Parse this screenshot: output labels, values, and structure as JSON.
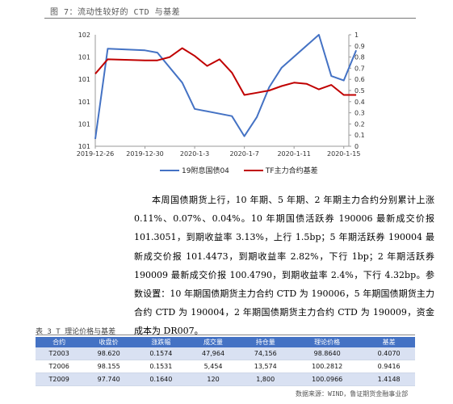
{
  "figure": {
    "caption": "图 7：流动性较好的 CTD 与基差"
  },
  "chart_data": {
    "type": "line",
    "x": [
      "2019-12-26",
      "2019-12-27",
      "2019-12-30",
      "2019-12-31",
      "2020-1-2",
      "2020-1-3",
      "2020-1-6",
      "2020-1-7",
      "2020-1-8",
      "2020-1-9",
      "2020-1-10",
      "2020-1-13",
      "2020-1-14",
      "2020-1-15",
      "2020-1-16"
    ],
    "xticks": [
      "2019-12-26",
      "2019-12-30",
      "2020-1-3",
      "2020-1-7",
      "2020-1-11",
      "2020-1-15"
    ],
    "xtick_values": [
      "2019-12-26",
      "2019-12-30",
      "2020-1-3",
      "2020-1-7",
      "2020-1-11",
      "2020-1-15"
    ],
    "left_axis_ticks": [
      "102",
      "101",
      "101",
      "101",
      "101",
      "101"
    ],
    "right_axis_ticks": [
      "1",
      "0.9",
      "0.8",
      "0.7",
      "0.6",
      "0.5",
      "0.4",
      "0.3",
      "0.2",
      "0.1",
      "0"
    ],
    "ylim_right": [
      0,
      1
    ],
    "series": [
      {
        "name": "19附息国债04",
        "axis": "left",
        "color": "#4472c4",
        "x": [
          "2019-12-26",
          "2019-12-27",
          "2019-12-30",
          "2019-12-31",
          "2020-1-2",
          "2020-1-3",
          "2020-1-6",
          "2020-1-7",
          "2020-1-8",
          "2020-1-9",
          "2020-1-10",
          "2020-1-13",
          "2020-1-14",
          "2020-1-15",
          "2020-1-16"
        ],
        "values": [
          0.065,
          0.875,
          0.86,
          0.84,
          0.57,
          0.335,
          0.27,
          0.09,
          0.26,
          0.53,
          0.705,
          1.0,
          0.63,
          0.59,
          0.86
        ]
      },
      {
        "name": "TF主力合约基差",
        "axis": "right",
        "color": "#c00000",
        "x": [
          "2019-12-26",
          "2019-12-27",
          "2019-12-30",
          "2019-12-31",
          "2020-1-1",
          "2020-1-2",
          "2020-1-3",
          "2020-1-4",
          "2020-1-5",
          "2020-1-6",
          "2020-1-7",
          "2020-1-8",
          "2020-1-9",
          "2020-1-10",
          "2020-1-11",
          "2020-1-12",
          "2020-1-13",
          "2020-1-14",
          "2020-1-15",
          "2020-1-16"
        ],
        "values": [
          0.65,
          0.78,
          0.77,
          0.77,
          0.8,
          0.88,
          0.81,
          0.72,
          0.78,
          0.66,
          0.46,
          0.48,
          0.5,
          0.54,
          0.57,
          0.56,
          0.51,
          0.55,
          0.46,
          0.46
        ]
      }
    ],
    "legend_position": "bottom"
  },
  "paragraph": "本周国债期货上行，10 年期、5 年期、2 年期主力合约分别累计上涨 0.11%、0.07%、0.04%。10 年期国债活跃券 190006 最新成交价报 101.3051，到期收益率 3.13%，上行 1.5bp；5 年期活跃券 190004 最新成交价报 101.4473，到期收益率 2.82%，下行 1bp；2 年期活跃券 190009 最新成交价报 100.4790，到期收益率 2.4%，下行 4.32bp。参数设置：10 年期国债期货主力合约 CTD 为 190006，5 年期国债期货主力合约 CTD 为 190004，2 年期国债期货主力合约 CTD 为 190009，资金成本为 DR007。",
  "table": {
    "caption": "表 3 T 理论价格与基差",
    "headers": [
      "合约",
      "收盘价",
      "涨跌幅",
      "成交量",
      "持仓量",
      "理论价格",
      "基差"
    ],
    "rows": [
      [
        "T2003",
        "98.620",
        "0.1574",
        "47,964",
        "74,156",
        "98.8640",
        "0.4070"
      ],
      [
        "T2006",
        "98.155",
        "0.1531",
        "5,454",
        "13,574",
        "100.2812",
        "0.9416"
      ],
      [
        "T2009",
        "97.740",
        "0.1640",
        "120",
        "1,800",
        "100.0966",
        "1.4148"
      ]
    ]
  },
  "source": "数据来源：WIND，鲁证期货金融事业部"
}
